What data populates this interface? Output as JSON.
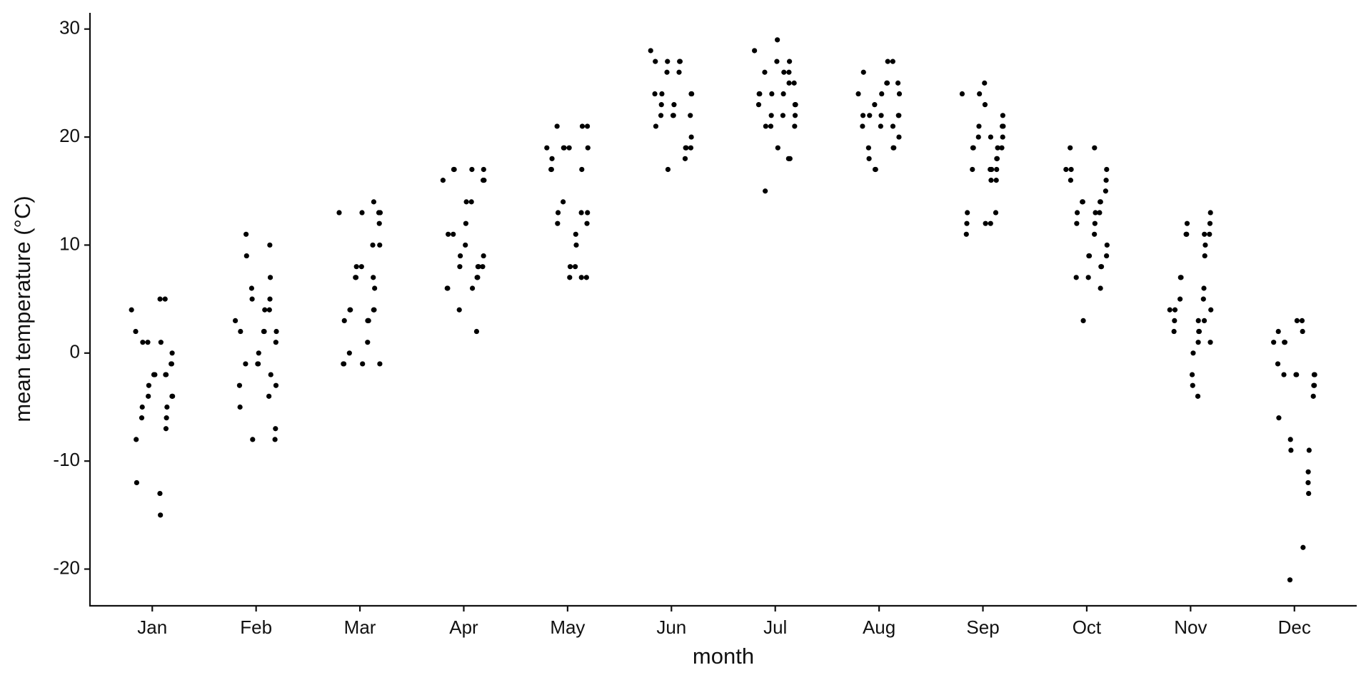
{
  "chart_data": {
    "type": "strip",
    "x_label": "month",
    "y_label": "mean temperature (°C)",
    "categories": [
      "Jan",
      "Feb",
      "Mar",
      "Apr",
      "May",
      "Jun",
      "Jul",
      "Aug",
      "Sep",
      "Oct",
      "Nov",
      "Dec"
    ],
    "values": [
      [
        4,
        -4,
        -4,
        -5,
        -6,
        -7,
        1,
        -15,
        -13,
        -2,
        -2,
        -2,
        -3,
        -4,
        1,
        1,
        -5,
        -6,
        -12,
        -8,
        2,
        0,
        -1,
        -1,
        -2,
        -2,
        5,
        5
      ],
      [
        3,
        2,
        1,
        -2,
        7,
        10,
        4,
        2,
        2,
        0,
        -1,
        -1,
        -8,
        5,
        6,
        9,
        11,
        -1,
        2,
        -5,
        -3,
        -3,
        -7,
        -8,
        5,
        4,
        -4
      ],
      [
        13,
        13,
        10,
        6,
        4,
        4,
        3,
        3,
        1,
        -1,
        13,
        8,
        8,
        7,
        7,
        4,
        4,
        0,
        3,
        -1,
        -1,
        -1,
        12,
        13,
        14,
        7,
        10,
        3
      ],
      [
        16,
        16,
        9,
        8,
        8,
        7,
        6,
        17,
        14,
        14,
        12,
        10,
        9,
        8,
        4,
        17,
        17,
        11,
        11,
        6,
        6,
        17,
        16,
        8,
        7,
        7,
        2
      ],
      [
        19,
        19,
        21,
        21,
        17,
        13,
        10,
        11,
        8,
        8,
        7,
        19,
        19,
        19,
        14,
        13,
        12,
        21,
        18,
        17,
        17,
        13,
        12,
        7,
        7
      ],
      [
        28,
        24,
        24,
        19,
        19,
        18,
        27,
        27,
        26,
        23,
        22,
        22,
        17,
        27,
        26,
        24,
        23,
        22,
        21,
        27,
        24,
        20,
        19,
        22
      ],
      [
        28,
        23,
        23,
        18,
        27,
        26,
        26,
        24,
        22,
        19,
        29,
        27,
        24,
        22,
        21,
        21,
        15,
        26,
        24,
        24,
        23,
        22,
        21,
        25,
        25,
        18
      ],
      [
        24,
        24,
        22,
        19,
        19,
        27,
        27,
        25,
        25,
        24,
        22,
        21,
        17,
        17,
        23,
        22,
        18,
        19,
        26,
        22,
        21,
        20,
        22,
        25,
        21
      ],
      [
        24,
        21,
        20,
        19,
        18,
        17,
        17,
        16,
        12,
        12,
        23,
        25,
        24,
        21,
        20,
        19,
        19,
        17,
        13,
        12,
        11,
        22,
        21,
        19,
        18,
        16,
        13,
        20,
        17
      ],
      [
        17,
        10,
        9,
        8,
        8,
        6,
        13,
        12,
        11,
        9,
        9,
        7,
        3,
        14,
        14,
        13,
        12,
        7,
        17,
        16,
        19,
        17,
        16,
        15,
        14,
        14,
        13,
        19
      ],
      [
        4,
        4,
        1,
        10,
        9,
        3,
        2,
        2,
        1,
        0,
        -3,
        -2,
        12,
        11,
        11,
        7,
        7,
        5,
        4,
        3,
        2,
        13,
        12,
        11,
        11,
        6,
        5,
        3,
        -4
      ],
      [
        1,
        -2,
        -2,
        -9,
        -13,
        -12,
        -18,
        2,
        3,
        3,
        -2,
        -2,
        -9,
        -8,
        -21,
        1,
        1,
        -2,
        -6,
        2,
        -1,
        -3,
        -3,
        -4,
        -11
      ]
    ],
    "color": "#000000",
    "ylim": [
      -23.4,
      31.5
    ],
    "yticks": [
      -20,
      -10,
      0,
      10,
      20,
      30
    ],
    "grid": false
  }
}
